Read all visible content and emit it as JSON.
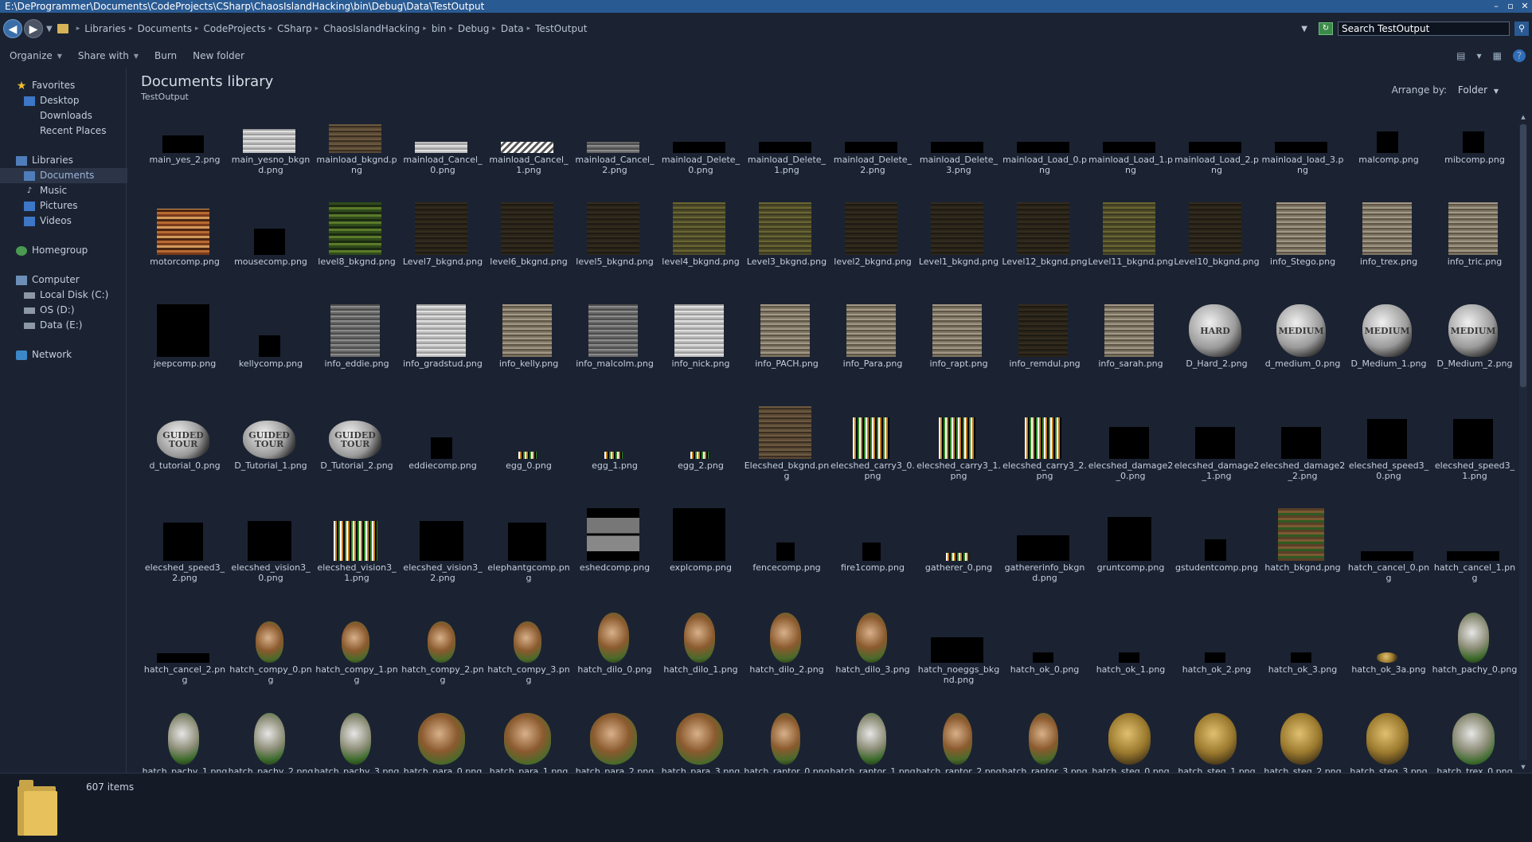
{
  "window": {
    "title": "E:\\DeProgrammer\\Documents\\CodeProjects\\CSharp\\ChaosIslandHacking\\bin\\Debug\\Data\\TestOutput",
    "buttons": [
      "–",
      "▫",
      "✕"
    ]
  },
  "address": {
    "breadcrumbs": [
      "Libraries",
      "Documents",
      "CodeProjects",
      "CSharp",
      "ChaosIslandHacking",
      "bin",
      "Debug",
      "Data",
      "TestOutput"
    ],
    "search_value": "Search TestOutput"
  },
  "toolbar": {
    "organize": "Organize",
    "share": "Share with",
    "burn": "Burn",
    "new_folder": "New folder",
    "help": "?"
  },
  "nav": {
    "favorites": "Favorites",
    "desktop": "Desktop",
    "downloads": "Downloads",
    "recent": "Recent Places",
    "libraries": "Libraries",
    "documents": "Documents",
    "music": "Music",
    "pictures": "Pictures",
    "videos": "Videos",
    "homegroup": "Homegroup",
    "computer": "Computer",
    "local_disk": "Local Disk (C:)",
    "os": "OS (D:)",
    "data": "Data (E:)",
    "network": "Network"
  },
  "header": {
    "title": "Documents library",
    "subtitle": "TestOutput",
    "arrange_label": "Arrange by:",
    "arrange_value": "Folder"
  },
  "files": [
    {
      "name": "main_yes_2.png",
      "style": "t-black",
      "w": 72,
      "h": 30
    },
    {
      "name": "main_yesno_bkgnd.png",
      "style": "t-light",
      "w": 92,
      "h": 42
    },
    {
      "name": "mainload_bkgnd.png",
      "style": "t-brown",
      "w": 92,
      "h": 50
    },
    {
      "name": "mainload_Cancel_0.png",
      "style": "t-light",
      "w": 92,
      "h": 20
    },
    {
      "name": "mainload_Cancel_1.png",
      "style": "t-slats",
      "w": 92,
      "h": 20
    },
    {
      "name": "mainload_Cancel_2.png",
      "style": "t-grey",
      "w": 92,
      "h": 20
    },
    {
      "name": "mainload_Delete_0.png",
      "style": "t-black",
      "w": 92,
      "h": 20
    },
    {
      "name": "mainload_Delete_1.png",
      "style": "t-black",
      "w": 92,
      "h": 20
    },
    {
      "name": "mainload_Delete_2.png",
      "style": "t-black",
      "w": 92,
      "h": 20
    },
    {
      "name": "mainload_Delete_3.png",
      "style": "t-black",
      "w": 92,
      "h": 20
    },
    {
      "name": "mainload_Load_0.png",
      "style": "t-black",
      "w": 92,
      "h": 20
    },
    {
      "name": "mainload_Load_1.png",
      "style": "t-black",
      "w": 92,
      "h": 20
    },
    {
      "name": "mainload_Load_2.png",
      "style": "t-black",
      "w": 92,
      "h": 20
    },
    {
      "name": "mainload_load_3.png",
      "style": "t-black",
      "w": 92,
      "h": 20
    },
    {
      "name": "malcomp.png",
      "style": "t-black",
      "w": 38,
      "h": 38
    },
    {
      "name": "mibcomp.png",
      "style": "t-black",
      "w": 38,
      "h": 38
    },
    {
      "name": "motorcomp.png",
      "style": "t-motor",
      "w": 92,
      "h": 80
    },
    {
      "name": "mousecomp.png",
      "style": "t-black",
      "w": 54,
      "h": 46
    },
    {
      "name": "level8_bkgnd.png",
      "style": "t-green",
      "w": 92,
      "h": 92
    },
    {
      "name": "Level7_bkgnd.png",
      "style": "t-dark",
      "w": 92,
      "h": 92
    },
    {
      "name": "level6_bkgnd.png",
      "style": "t-dark",
      "w": 92,
      "h": 92
    },
    {
      "name": "level5_bkgnd.png",
      "style": "t-dark",
      "w": 92,
      "h": 92
    },
    {
      "name": "level4_bkgnd.png",
      "style": "t-olive",
      "w": 92,
      "h": 92
    },
    {
      "name": "Level3_bkgnd.png",
      "style": "t-olive",
      "w": 92,
      "h": 92
    },
    {
      "name": "level2_bkgnd.png",
      "style": "t-dark",
      "w": 92,
      "h": 92
    },
    {
      "name": "Level1_bkgnd.png",
      "style": "t-dark",
      "w": 92,
      "h": 92
    },
    {
      "name": "Level12_bkgnd.png",
      "style": "t-dark",
      "w": 92,
      "h": 92
    },
    {
      "name": "Level11_bkgnd.png",
      "style": "t-olive",
      "w": 92,
      "h": 92
    },
    {
      "name": "Level10_bkgnd.png",
      "style": "t-dark",
      "w": 92,
      "h": 92
    },
    {
      "name": "info_Stego.png",
      "style": "t-wood",
      "w": 86,
      "h": 92
    },
    {
      "name": "info_trex.png",
      "style": "t-wood",
      "w": 86,
      "h": 92
    },
    {
      "name": "info_tric.png",
      "style": "t-wood",
      "w": 86,
      "h": 92
    },
    {
      "name": "jeepcomp.png",
      "style": "t-black",
      "w": 92,
      "h": 92
    },
    {
      "name": "kellycomp.png",
      "style": "t-black",
      "w": 38,
      "h": 38
    },
    {
      "name": "info_eddie.png",
      "style": "t-grey",
      "w": 86,
      "h": 92
    },
    {
      "name": "info_gradstud.png",
      "style": "t-light",
      "w": 86,
      "h": 92
    },
    {
      "name": "info_kelly.png",
      "style": "t-wood",
      "w": 86,
      "h": 92
    },
    {
      "name": "info_malcolm.png",
      "style": "t-grey",
      "w": 86,
      "h": 92
    },
    {
      "name": "info_nick.png",
      "style": "t-light",
      "w": 86,
      "h": 92
    },
    {
      "name": "info_PACH.png",
      "style": "t-wood",
      "w": 86,
      "h": 92
    },
    {
      "name": "info_Para.png",
      "style": "t-wood",
      "w": 86,
      "h": 92
    },
    {
      "name": "info_rapt.png",
      "style": "t-wood",
      "w": 86,
      "h": 92
    },
    {
      "name": "info_remdul.png",
      "style": "t-dark",
      "w": 86,
      "h": 92
    },
    {
      "name": "info_sarah.png",
      "style": "t-wood",
      "w": 86,
      "h": 92
    },
    {
      "name": "D_Hard_2.png",
      "style": "t-rock",
      "w": 92,
      "h": 92,
      "label": "HARD"
    },
    {
      "name": "d_medium_0.png",
      "style": "t-rock",
      "w": 86,
      "h": 92,
      "label": "MEDIUM"
    },
    {
      "name": "D_Medium_1.png",
      "style": "t-rock",
      "w": 86,
      "h": 92,
      "label": "MEDIUM"
    },
    {
      "name": "D_Medium_2.png",
      "style": "t-rock",
      "w": 86,
      "h": 92,
      "label": "MEDIUM"
    },
    {
      "name": "d_tutorial_0.png",
      "style": "t-rock",
      "w": 92,
      "h": 66,
      "label": "GUIDED TOUR"
    },
    {
      "name": "D_Tutorial_1.png",
      "style": "t-rock",
      "w": 92,
      "h": 66,
      "label": "GUIDED TOUR"
    },
    {
      "name": "D_Tutorial_2.png",
      "style": "t-rock",
      "w": 92,
      "h": 66,
      "label": "GUIDED TOUR"
    },
    {
      "name": "eddiecomp.png",
      "style": "t-black",
      "w": 38,
      "h": 38
    },
    {
      "name": "egg_0.png",
      "style": "t-noise",
      "w": 32,
      "h": 12
    },
    {
      "name": "egg_1.png",
      "style": "t-noise",
      "w": 32,
      "h": 12
    },
    {
      "name": "egg_2.png",
      "style": "t-noise",
      "w": 32,
      "h": 12
    },
    {
      "name": "Elecshed_bkgnd.png",
      "style": "t-brown",
      "w": 92,
      "h": 92
    },
    {
      "name": "elecshed_carry3_0.png",
      "style": "t-noise",
      "w": 64,
      "h": 72
    },
    {
      "name": "elecshed_carry3_1.png",
      "style": "t-noise",
      "w": 64,
      "h": 72
    },
    {
      "name": "elecshed_carry3_2.png",
      "style": "t-noise",
      "w": 64,
      "h": 72
    },
    {
      "name": "elecshed_damage2_0.png",
      "style": "t-black",
      "w": 70,
      "h": 56
    },
    {
      "name": "elecshed_damage2_1.png",
      "style": "t-black",
      "w": 70,
      "h": 56
    },
    {
      "name": "elecshed_damage2_2.png",
      "style": "t-black",
      "w": 70,
      "h": 56
    },
    {
      "name": "elecshed_speed3_0.png",
      "style": "t-black",
      "w": 70,
      "h": 70
    },
    {
      "name": "elecshed_speed3_1.png",
      "style": "t-black",
      "w": 70,
      "h": 70
    },
    {
      "name": "elecshed_speed3_2.png",
      "style": "t-black",
      "w": 70,
      "h": 66
    },
    {
      "name": "elecshed_vision3_0.png",
      "style": "t-black",
      "w": 76,
      "h": 70
    },
    {
      "name": "elecshed_vision3_1.png",
      "style": "t-noise",
      "w": 76,
      "h": 70
    },
    {
      "name": "elecshed_vision3_2.png",
      "style": "t-black",
      "w": 76,
      "h": 70
    },
    {
      "name": "elephantgcomp.png",
      "style": "t-black",
      "w": 66,
      "h": 66
    },
    {
      "name": "eshedcomp.png",
      "style": "t-band",
      "w": 92,
      "h": 92
    },
    {
      "name": "explcomp.png",
      "style": "t-splash",
      "w": 92,
      "h": 92
    },
    {
      "name": "fencecomp.png",
      "style": "t-black",
      "w": 32,
      "h": 32
    },
    {
      "name": "fire1comp.png",
      "style": "t-black",
      "w": 32,
      "h": 32
    },
    {
      "name": "gatherer_0.png",
      "style": "t-noise",
      "w": 40,
      "h": 14
    },
    {
      "name": "gathererinfo_bkgnd.png",
      "style": "t-black",
      "w": 92,
      "h": 44
    },
    {
      "name": "gruntcomp.png",
      "style": "t-black",
      "w": 76,
      "h": 76
    },
    {
      "name": "gstudentcomp.png",
      "style": "t-black",
      "w": 38,
      "h": 38
    },
    {
      "name": "hatch_bkgnd.png",
      "style": "t-hatch",
      "w": 80,
      "h": 92
    },
    {
      "name": "hatch_cancel_0.png",
      "style": "t-black",
      "w": 92,
      "h": 16
    },
    {
      "name": "hatch_cancel_1.png",
      "style": "t-black",
      "w": 92,
      "h": 16
    },
    {
      "name": "hatch_cancel_2.png",
      "style": "t-black",
      "w": 92,
      "h": 16
    },
    {
      "name": "hatch_compy_0.png",
      "style": "t-egg",
      "w": 48,
      "h": 72
    },
    {
      "name": "hatch_compy_1.png",
      "style": "t-egg",
      "w": 48,
      "h": 72
    },
    {
      "name": "hatch_compy_2.png",
      "style": "t-egg",
      "w": 48,
      "h": 72
    },
    {
      "name": "hatch_compy_3.png",
      "style": "t-egg",
      "w": 48,
      "h": 72
    },
    {
      "name": "hatch_dilo_0.png",
      "style": "t-egg",
      "w": 54,
      "h": 88
    },
    {
      "name": "hatch_dilo_1.png",
      "style": "t-egg",
      "w": 54,
      "h": 88
    },
    {
      "name": "hatch_dilo_2.png",
      "style": "t-egg",
      "w": 54,
      "h": 88
    },
    {
      "name": "hatch_dilo_3.png",
      "style": "t-egg",
      "w": 54,
      "h": 88
    },
    {
      "name": "hatch_noeggs_bkgnd.png",
      "style": "t-black",
      "w": 92,
      "h": 44
    },
    {
      "name": "hatch_ok_0.png",
      "style": "t-black",
      "w": 36,
      "h": 18
    },
    {
      "name": "hatch_ok_1.png",
      "style": "t-black",
      "w": 36,
      "h": 18
    },
    {
      "name": "hatch_ok_2.png",
      "style": "t-black",
      "w": 36,
      "h": 18
    },
    {
      "name": "hatch_ok_3.png",
      "style": "t-black",
      "w": 36,
      "h": 18
    },
    {
      "name": "hatch_ok_3a.png",
      "style": "t-egggold",
      "w": 36,
      "h": 18
    },
    {
      "name": "hatch_pachy_0.png",
      "style": "t-eggcool",
      "w": 54,
      "h": 88
    },
    {
      "name": "hatch_pachy_1.png",
      "style": "t-eggcool",
      "w": 54,
      "h": 90
    },
    {
      "name": "hatch_pachy_2.png",
      "style": "t-eggcool",
      "w": 54,
      "h": 90
    },
    {
      "name": "hatch_pachy_3.png",
      "style": "t-eggcool",
      "w": 54,
      "h": 90
    },
    {
      "name": "hatch_para_0.png",
      "style": "t-egg",
      "w": 82,
      "h": 90
    },
    {
      "name": "hatch_para_1.png",
      "style": "t-egg",
      "w": 82,
      "h": 90
    },
    {
      "name": "hatch_para_2.png",
      "style": "t-egg",
      "w": 82,
      "h": 90
    },
    {
      "name": "hatch_para_3.png",
      "style": "t-egg",
      "w": 82,
      "h": 90
    },
    {
      "name": "hatch_raptor_0.png",
      "style": "t-egg",
      "w": 52,
      "h": 90
    },
    {
      "name": "hatch_raptor_1.png",
      "style": "t-eggcool",
      "w": 52,
      "h": 90
    },
    {
      "name": "hatch_raptor_2.png",
      "style": "t-egg",
      "w": 52,
      "h": 90
    },
    {
      "name": "hatch_raptor_3.png",
      "style": "t-egg",
      "w": 52,
      "h": 90
    },
    {
      "name": "hatch_steg_0.png",
      "style": "t-egggold",
      "w": 74,
      "h": 90
    },
    {
      "name": "hatch_steg_1.png",
      "style": "t-egggold",
      "w": 74,
      "h": 90
    },
    {
      "name": "hatch_steg_2.png",
      "style": "t-egggold",
      "w": 74,
      "h": 90
    },
    {
      "name": "hatch_steg_3.png",
      "style": "t-egggold",
      "w": 74,
      "h": 90
    },
    {
      "name": "hatch_trex_0.png",
      "style": "t-eggcool",
      "w": 74,
      "h": 90
    }
  ],
  "status": {
    "count": "607 items"
  }
}
